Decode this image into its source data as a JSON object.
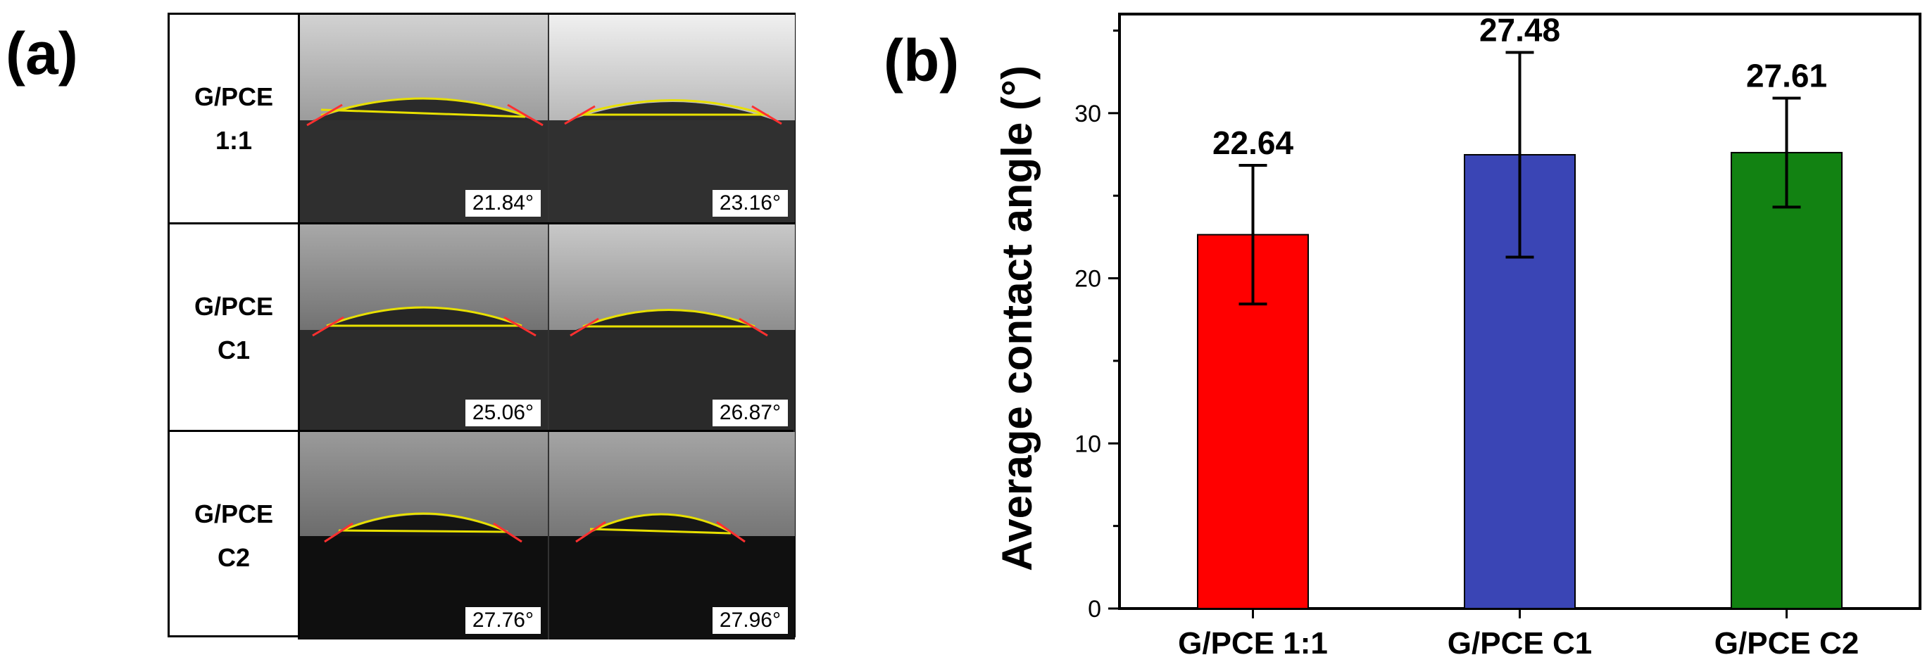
{
  "panel_a": {
    "letter": "(a)",
    "rows": [
      {
        "label_line1": "G/PCE",
        "label_line2": "1:1",
        "angles": [
          "21.84°",
          "23.16°"
        ]
      },
      {
        "label_line1": "G/PCE",
        "label_line2": "C1",
        "angles": [
          "25.06°",
          "26.87°"
        ]
      },
      {
        "label_line1": "G/PCE",
        "label_line2": "C2",
        "angles": [
          "27.76°",
          "27.96°"
        ]
      }
    ]
  },
  "panel_b": {
    "letter": "(b)"
  },
  "chart_data": {
    "type": "bar",
    "title": "",
    "xlabel": "",
    "ylabel": "Average contact angle (°)",
    "categories": [
      "G/PCE 1:1",
      "G/PCE C1",
      "G/PCE C2"
    ],
    "values": [
      22.64,
      27.48,
      27.61
    ],
    "value_labels": [
      "22.64",
      "27.48",
      "27.61"
    ],
    "error_bars": [
      4.2,
      6.2,
      3.3
    ],
    "bar_colors": [
      "#ff0000",
      "#3a45b5",
      "#128212"
    ],
    "ylim": [
      0,
      36
    ],
    "yticks": [
      0,
      10,
      20,
      30
    ],
    "ytick_labels": [
      "0",
      "10",
      "20",
      "30"
    ],
    "grid": false
  }
}
